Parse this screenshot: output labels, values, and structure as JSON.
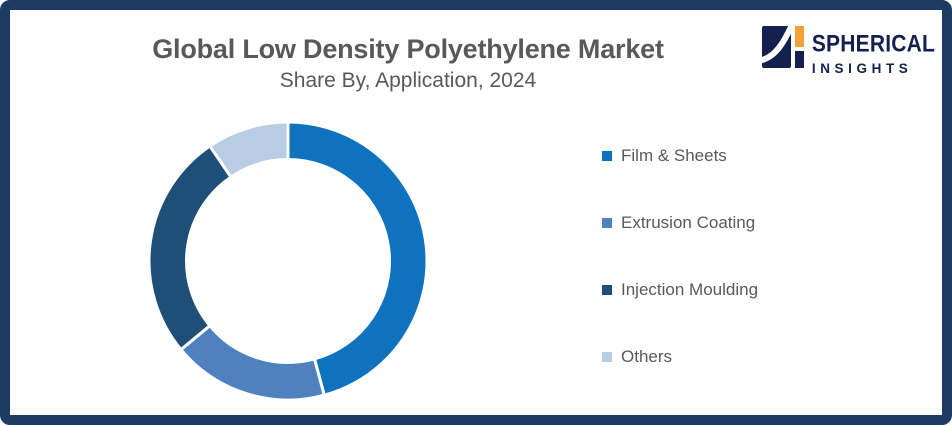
{
  "page": {
    "border_color": "#1d3a63",
    "background_color": "#ffffff"
  },
  "header": {
    "title": "Global Low Density Polyethylene Market",
    "subtitle": "Share By, Application, 2024",
    "text_color": "#595959"
  },
  "logo": {
    "brand_line1": "SPHERICAL",
    "brand_line2": "INSIGHTS",
    "navy": "#14204e",
    "orange": "#f2a238"
  },
  "chart_data": {
    "type": "pie",
    "variant": "donut",
    "title": "Global Low Density Polyethylene Market Share By, Application, 2024",
    "categories": [
      "Film & Sheets",
      "Extrusion Coating",
      "Injection Moulding",
      "Others"
    ],
    "values": [
      45.8,
      18.2,
      26.5,
      9.5
    ],
    "unit": "percent-share",
    "colors": [
      "#0e72be",
      "#4e81bd",
      "#1f4e79",
      "#b8cce4"
    ],
    "start_angle_deg": 0,
    "direction": "clockwise",
    "inner_radius_ratio": 0.73,
    "segment_gap_color": "#ffffff",
    "legend_position": "right",
    "data_labels": false
  },
  "legend": {
    "items": [
      {
        "label": "Film & Sheets",
        "color": "#0e72be"
      },
      {
        "label": "Extrusion Coating",
        "color": "#4e81bd"
      },
      {
        "label": "Injection Moulding",
        "color": "#1f4e79"
      },
      {
        "label": "Others",
        "color": "#b8cce4"
      }
    ]
  }
}
